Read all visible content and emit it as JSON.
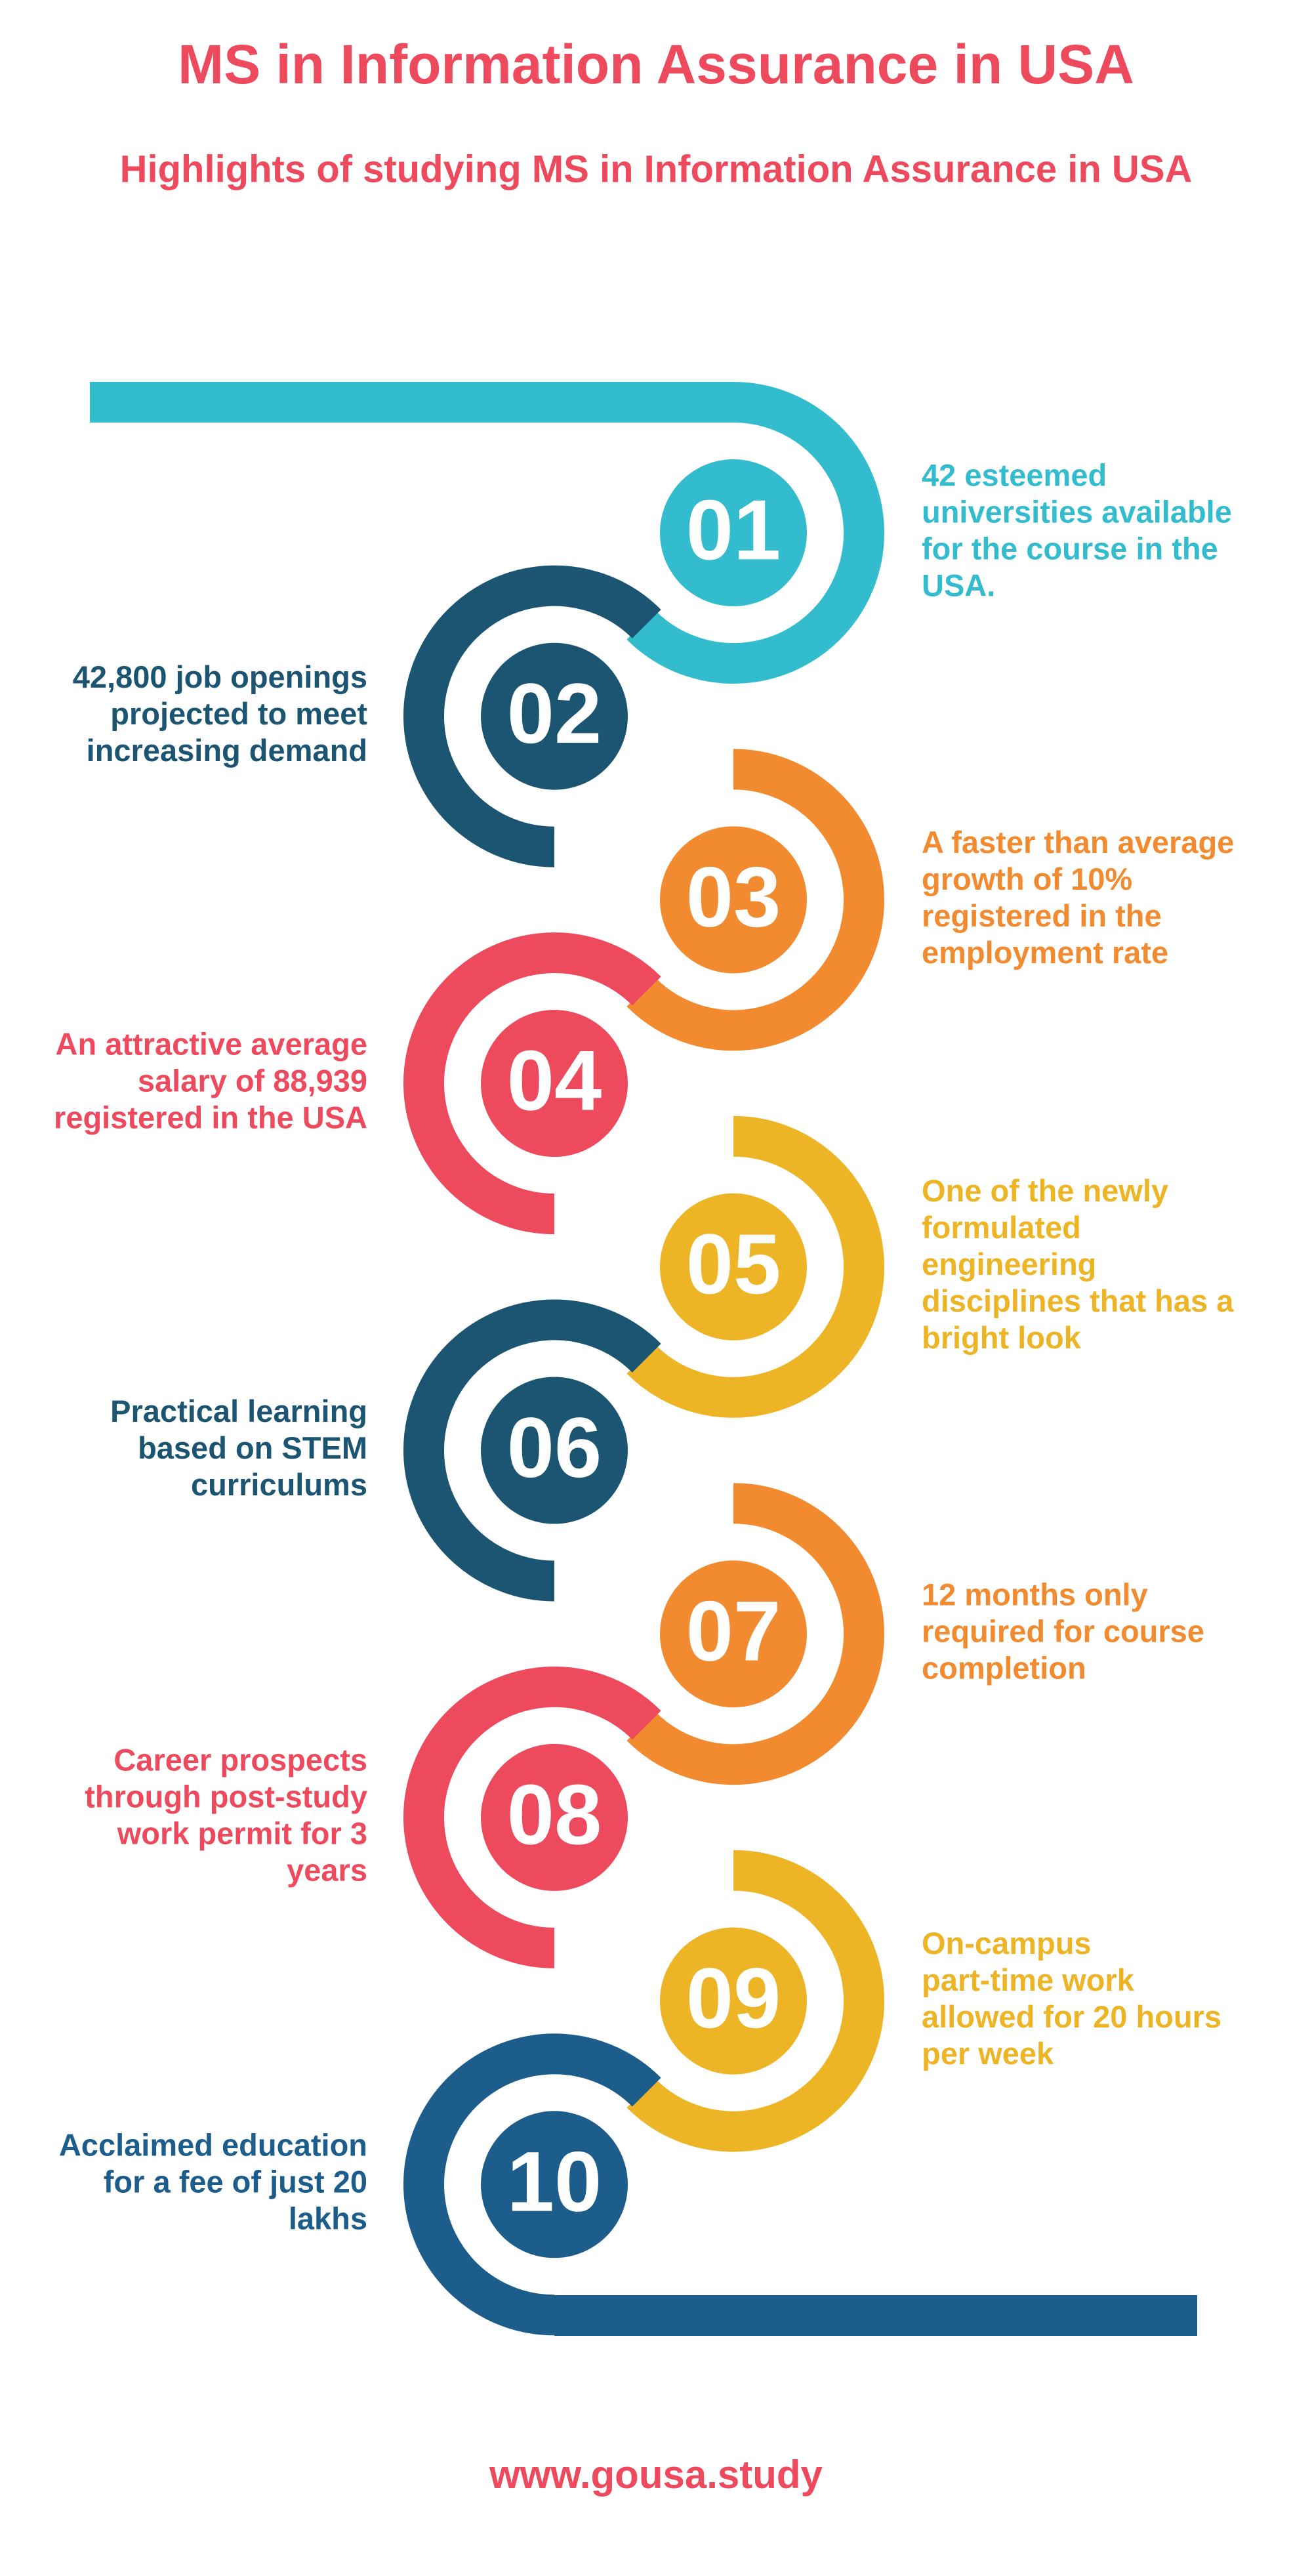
{
  "header": {
    "title": "MS in Information Assurance in USA",
    "subtitle": "Highlights of studying MS in Information Assurance in USA"
  },
  "items": [
    {
      "number": "01",
      "lines": [
        "42 esteemed",
        "universities available",
        "for the course in the",
        "USA."
      ]
    },
    {
      "number": "02",
      "lines": [
        "42,800 job openings",
        "projected to meet",
        "increasing demand"
      ]
    },
    {
      "number": "03",
      "lines": [
        "A faster than average",
        "growth of 10%",
        "registered in the",
        "employment rate"
      ]
    },
    {
      "number": "04",
      "lines": [
        "An attractive average",
        "salary of 88,939",
        "registered in the USA"
      ]
    },
    {
      "number": "05",
      "lines": [
        "One of the newly",
        "formulated",
        "engineering",
        "disciplines that has a",
        "bright look"
      ]
    },
    {
      "number": "06",
      "lines": [
        "Practical learning",
        "based on STEM",
        "curriculums"
      ]
    },
    {
      "number": "07",
      "lines": [
        "12 months only",
        "required for course",
        "completion"
      ]
    },
    {
      "number": "08",
      "lines": [
        "Career prospects",
        "through post-study",
        "work permit for 3",
        "years"
      ]
    },
    {
      "number": "09",
      "lines": [
        "On-campus",
        "part-time work",
        "allowed for 20 hours",
        "per week"
      ]
    },
    {
      "number": "10",
      "lines": [
        "Acclaimed education",
        "for a fee of just 20",
        "lakhs"
      ]
    }
  ],
  "footer": {
    "url": "www.gousa.study"
  }
}
